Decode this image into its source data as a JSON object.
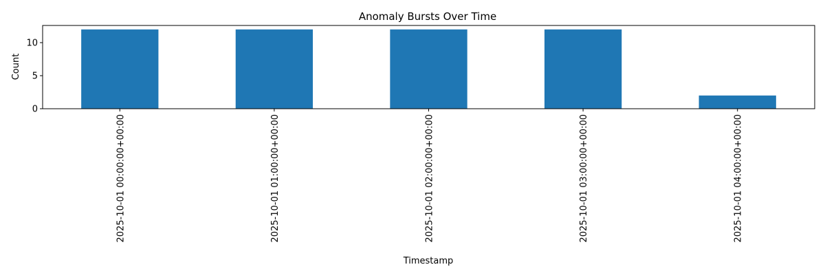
{
  "chart_data": {
    "type": "bar",
    "title": "Anomaly Bursts Over Time",
    "xlabel": "Timestamp",
    "ylabel": "Count",
    "categories": [
      "2025-10-01 00:00:00+00:00",
      "2025-10-01 01:00:00+00:00",
      "2025-10-01 02:00:00+00:00",
      "2025-10-01 03:00:00+00:00",
      "2025-10-01 04:00:00+00:00"
    ],
    "values": [
      12,
      12,
      12,
      12,
      2
    ],
    "ylim": [
      0,
      12.6
    ],
    "yticks": [
      0,
      5,
      10
    ],
    "bar_color": "#1f77b4",
    "grid": false,
    "legend": "none"
  }
}
